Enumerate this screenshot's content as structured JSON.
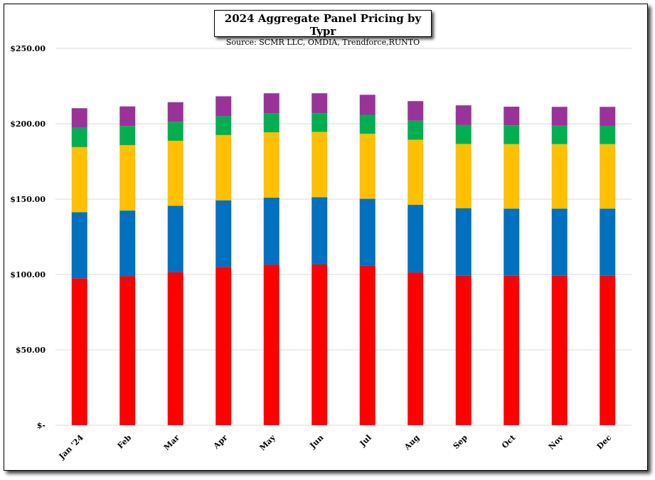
{
  "chart_data": {
    "type": "bar",
    "stacked": true,
    "title": "2024 Aggregate Panel Pricing by Typr",
    "subtitle": "Source: SCMR LLC, OMDIA, Trendforce,RUNTO",
    "categories": [
      "Jan '24",
      "Feb",
      "Mar",
      "Apr",
      "May",
      "Jun",
      "Jul",
      "Aug",
      "Sep",
      "Oct",
      "Nov",
      "Dec"
    ],
    "y_ticks": [
      "$-",
      "$50.00",
      "$100.00",
      "$150.00",
      "$200.00",
      "$250.00"
    ],
    "ylim": [
      0,
      250
    ],
    "grid": true,
    "legend": "none",
    "series": [
      {
        "color": "#ff0000",
        "values": [
          97.5,
          98.8,
          101.6,
          104.9,
          106.4,
          106.6,
          105.7,
          101.2,
          99.2,
          99.2,
          99.2,
          99.2
        ]
      },
      {
        "color": "#0070c0",
        "values": [
          43.8,
          43.6,
          44.0,
          44.3,
          44.6,
          44.7,
          44.5,
          45.0,
          44.8,
          44.5,
          44.5,
          44.5
        ]
      },
      {
        "color": "#ffc000",
        "values": [
          43.2,
          43.4,
          43.1,
          43.3,
          43.3,
          43.3,
          43.2,
          43.2,
          42.6,
          42.8,
          42.8,
          42.8
        ]
      },
      {
        "color": "#00b050",
        "values": [
          12.8,
          12.7,
          12.6,
          12.5,
          12.6,
          12.4,
          12.5,
          12.6,
          12.5,
          12.5,
          12.2,
          12.1
        ]
      },
      {
        "color": "#993399",
        "values": [
          13.0,
          13.0,
          13.0,
          13.2,
          13.3,
          13.2,
          13.3,
          13.0,
          13.1,
          12.3,
          12.5,
          12.6
        ]
      }
    ]
  }
}
